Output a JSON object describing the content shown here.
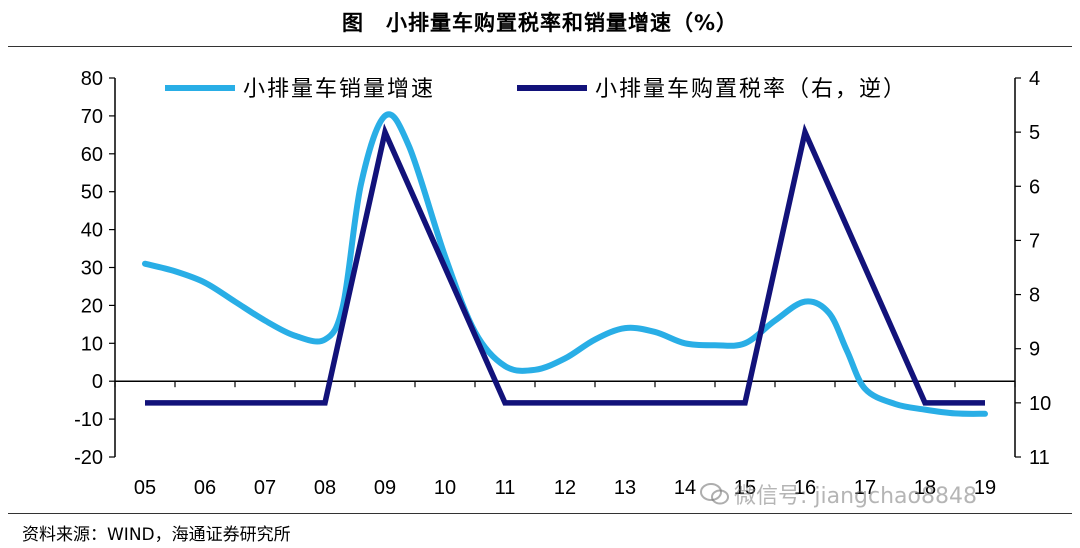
{
  "title": "图　小排量车购置税率和销量增速（%）",
  "source": "资料来源：WIND，海通证券研究所",
  "watermark": "微信号: jiangchao8848",
  "colors": {
    "sales": "#29aee6",
    "tax": "#12127a",
    "axis": "#000000"
  },
  "chart_data": {
    "type": "line",
    "title": "小排量车购置税率和销量增速（%）",
    "categories": [
      "05",
      "06",
      "07",
      "08",
      "09",
      "10",
      "11",
      "12",
      "13",
      "14",
      "15",
      "16",
      "17",
      "18",
      "19"
    ],
    "legend_position": "top",
    "y_left": {
      "range": [
        -20,
        80
      ],
      "ticks": [
        "-20",
        "-10",
        "0",
        "10",
        "20",
        "30",
        "40",
        "50",
        "60",
        "70",
        "80"
      ]
    },
    "y_right": {
      "range": [
        4,
        11
      ],
      "inverted": true,
      "ticks": [
        "4",
        "5",
        "6",
        "7",
        "8",
        "9",
        "10",
        "11"
      ]
    },
    "series": [
      {
        "name": "小排量车销量增速",
        "axis": "left",
        "color": "#29aee6",
        "points": [
          [
            0,
            31
          ],
          [
            0.5,
            29
          ],
          [
            1,
            26
          ],
          [
            1.5,
            21
          ],
          [
            2,
            16
          ],
          [
            2.5,
            12
          ],
          [
            3,
            11
          ],
          [
            3.3,
            20
          ],
          [
            3.6,
            52
          ],
          [
            4,
            70
          ],
          [
            4.4,
            62
          ],
          [
            5,
            33
          ],
          [
            5.5,
            13
          ],
          [
            6,
            4
          ],
          [
            6.5,
            3
          ],
          [
            7,
            6
          ],
          [
            7.5,
            11
          ],
          [
            8,
            14
          ],
          [
            8.5,
            13
          ],
          [
            9,
            10
          ],
          [
            9.5,
            9.5
          ],
          [
            10,
            10
          ],
          [
            10.5,
            16
          ],
          [
            11,
            21
          ],
          [
            11.4,
            18
          ],
          [
            11.7,
            8
          ],
          [
            12,
            -2
          ],
          [
            12.5,
            -6
          ],
          [
            13,
            -7.5
          ],
          [
            13.5,
            -8.5
          ],
          [
            14,
            -8.6
          ]
        ]
      },
      {
        "name": "小排量车购置税率（右，逆）",
        "axis": "right",
        "color": "#12127a",
        "values": [
          10,
          10,
          10,
          10,
          5,
          7.5,
          10,
          10,
          10,
          10,
          10,
          5,
          7.5,
          10,
          10
        ]
      }
    ]
  }
}
